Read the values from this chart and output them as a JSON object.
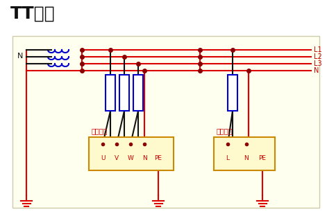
{
  "title": "TT系统",
  "bg_color": "#fffff0",
  "outer_bg": "#ffffff",
  "red": "#dd0000",
  "black": "#111111",
  "blue": "#0000cc",
  "dark_red": "#8b0000",
  "label_color": "#cc0000",
  "box_fill": "#fffacd",
  "box_edge": "#cc8800",
  "three_phase_label": "三相设备",
  "single_phase_label": "单相设备",
  "bus_labels": [
    "L1",
    "L2",
    "L3",
    "N"
  ],
  "box1_labels": [
    "U",
    "V",
    "W",
    "N",
    "PE"
  ],
  "box2_labels": [
    "L",
    "N",
    "PE"
  ]
}
